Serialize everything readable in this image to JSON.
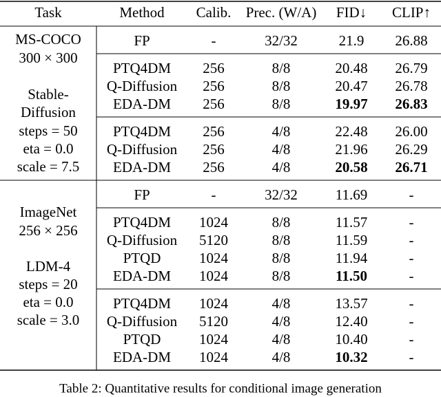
{
  "table": {
    "header": [
      "Task",
      "Method",
      "Calib.",
      "Prec. (W/A)",
      "FID↓",
      "CLIP↑"
    ],
    "groups": [
      {
        "dataset": [
          "MS-COCO",
          "300 × 300"
        ],
        "config": [
          "Stable-",
          "Diffusion",
          "steps = 50",
          "eta = 0.0",
          "scale = 7.5"
        ],
        "blocks": [
          {
            "rows": [
              [
                "FP",
                "-",
                "32/32",
                "21.9",
                "26.88"
              ]
            ]
          },
          {
            "rows": [
              [
                "PTQ4DM",
                "256",
                "8/8",
                "20.48",
                "26.79"
              ],
              [
                "Q-Diffusion",
                "256",
                "8/8",
                "20.47",
                "26.78"
              ],
              [
                "EDA-DM",
                "256",
                "8/8",
                "19.97",
                "26.83"
              ]
            ],
            "bold_row": 2,
            "bold_cols": [
              3,
              4
            ]
          },
          {
            "rows": [
              [
                "PTQ4DM",
                "256",
                "4/8",
                "22.48",
                "26.00"
              ],
              [
                "Q-Diffusion",
                "256",
                "4/8",
                "21.96",
                "26.29"
              ],
              [
                "EDA-DM",
                "256",
                "4/8",
                "20.58",
                "26.71"
              ]
            ],
            "bold_row": 2,
            "bold_cols": [
              3,
              4
            ]
          }
        ]
      },
      {
        "dataset": [
          "ImageNet",
          "256 × 256"
        ],
        "config": [
          "LDM-4",
          "steps = 20",
          "eta = 0.0",
          "scale = 3.0"
        ],
        "blocks": [
          {
            "rows": [
              [
                "FP",
                "-",
                "32/32",
                "11.69",
                "-"
              ]
            ]
          },
          {
            "rows": [
              [
                "PTQ4DM",
                "1024",
                "8/8",
                "11.57",
                "-"
              ],
              [
                "Q-Diffusion",
                "5120",
                "8/8",
                "11.59",
                "-"
              ],
              [
                "PTQD",
                "1024",
                "8/8",
                "11.94",
                "-"
              ],
              [
                "EDA-DM",
                "1024",
                "8/8",
                "11.50",
                "-"
              ]
            ],
            "bold_row": 3,
            "bold_cols": [
              3
            ]
          },
          {
            "rows": [
              [
                "PTQ4DM",
                "1024",
                "4/8",
                "13.57",
                "-"
              ],
              [
                "Q-Diffusion",
                "5120",
                "4/8",
                "12.40",
                "-"
              ],
              [
                "PTQD",
                "1024",
                "4/8",
                "10.40",
                "-"
              ],
              [
                "EDA-DM",
                "1024",
                "4/8",
                "10.32",
                "-"
              ]
            ],
            "bold_row": 3,
            "bold_cols": [
              3
            ]
          }
        ]
      }
    ],
    "caption": "Table 2: Quantitative results for conditional image generation"
  }
}
